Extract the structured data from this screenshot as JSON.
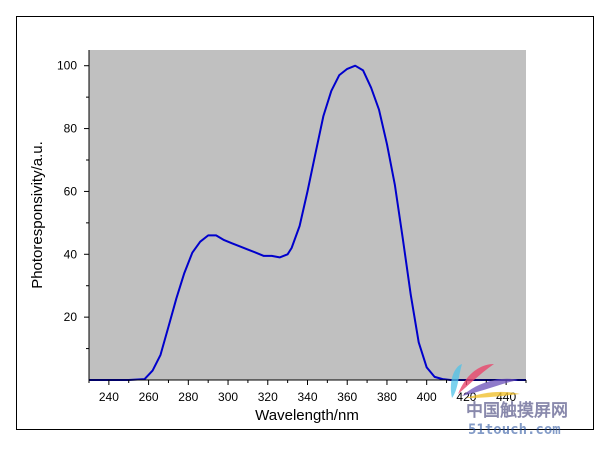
{
  "chart_data": {
    "type": "line",
    "xlabel": "Wavelength/nm",
    "ylabel": "Photoresponsivity/a.u.",
    "xlim": [
      230,
      450
    ],
    "ylim": [
      0,
      105
    ],
    "x_ticks": [
      240,
      260,
      280,
      300,
      320,
      340,
      360,
      380,
      400,
      420,
      440
    ],
    "y_ticks": [
      20,
      40,
      60,
      80,
      100
    ],
    "grid": false,
    "plot_background": "#c0c0c0",
    "line_color": "#0000cc",
    "series": [
      {
        "x": [
          230,
          240,
          250,
          258,
          262,
          266,
          270,
          274,
          278,
          282,
          286,
          290,
          294,
          298,
          302,
          306,
          310,
          314,
          318,
          322,
          326,
          330,
          332,
          336,
          340,
          344,
          348,
          352,
          356,
          360,
          364,
          368,
          372,
          376,
          380,
          384,
          388,
          392,
          396,
          400,
          404,
          408,
          412,
          420,
          450
        ],
        "y": [
          0,
          0,
          0,
          0.3,
          3,
          8,
          17,
          26,
          34,
          40.5,
          44,
          46,
          46,
          44.5,
          43.5,
          42.5,
          41.5,
          40.5,
          39.5,
          39.5,
          39,
          40,
          42,
          49,
          60,
          72,
          84,
          92,
          97,
          99,
          100,
          98.5,
          93,
          86,
          75,
          62,
          45,
          27,
          12,
          4,
          1,
          0.3,
          0,
          0,
          0
        ]
      }
    ]
  },
  "watermark": {
    "cn": "中国触摸屏网",
    "en": "51touch.com"
  }
}
